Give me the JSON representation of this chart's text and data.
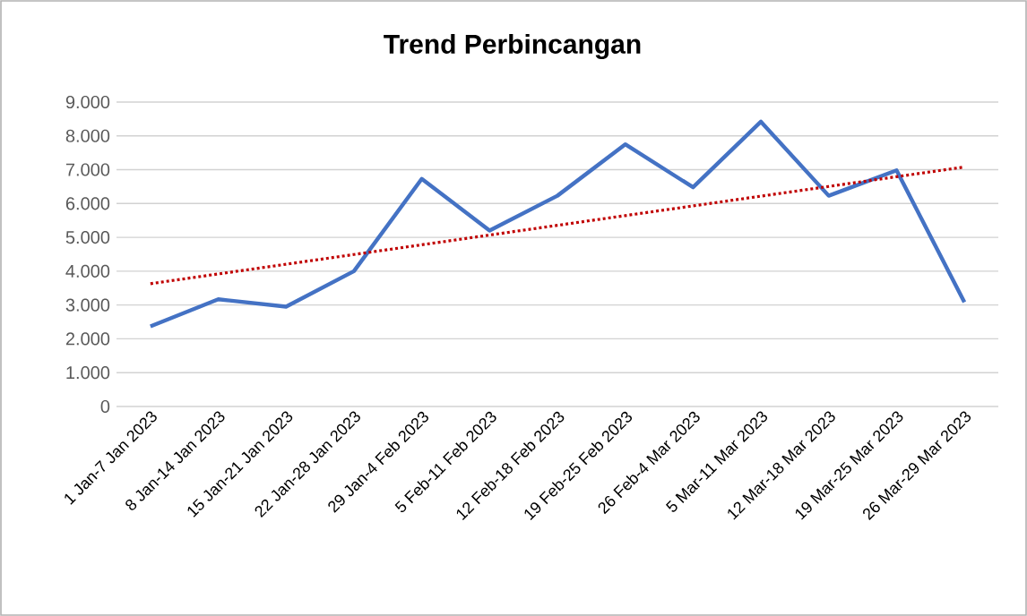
{
  "chart_data": {
    "type": "line",
    "title": "Trend Perbincangan",
    "categories": [
      "1 Jan-7 Jan 2023",
      "8 Jan-14 Jan 2023",
      "15 Jan-21 Jan 2023",
      "22 Jan-28 Jan 2023",
      "29 Jan-4 Feb 2023",
      "5 Feb-11 Feb 2023",
      "12 Feb-18 Feb 2023",
      "19 Feb-25 Feb 2023",
      "26 Feb-4 Mar 2023",
      "5 Mar-11 Mar 2023",
      "12 Mar-18 Mar 2023",
      "19 Mar-25 Mar 2023",
      "26 Mar-29 Mar 2023"
    ],
    "series": [
      {
        "color": "#4472c4",
        "line_style": "solid",
        "values": [
          2370,
          3170,
          2950,
          4000,
          6730,
          5200,
          6230,
          7750,
          6480,
          8420,
          6230,
          6980,
          3080
        ]
      },
      {
        "color": "#c00000",
        "line_style": "dotted",
        "values": [
          3630,
          3918,
          4205,
          4493,
          4780,
          5068,
          5355,
          5643,
          5930,
          6218,
          6505,
          6793,
          7080
        ]
      }
    ],
    "ylim": [
      0,
      9000
    ],
    "yticks": [
      {
        "value": 0,
        "label": "0"
      },
      {
        "value": 1000,
        "label": "1.000"
      },
      {
        "value": 2000,
        "label": "2.000"
      },
      {
        "value": 3000,
        "label": "3.000"
      },
      {
        "value": 4000,
        "label": "4.000"
      },
      {
        "value": 5000,
        "label": "5.000"
      },
      {
        "value": 6000,
        "label": "6.000"
      },
      {
        "value": 7000,
        "label": "7.000"
      },
      {
        "value": 8000,
        "label": "8.000"
      },
      {
        "value": 9000,
        "label": "9.000"
      }
    ],
    "grid": "y",
    "marker": "none"
  }
}
